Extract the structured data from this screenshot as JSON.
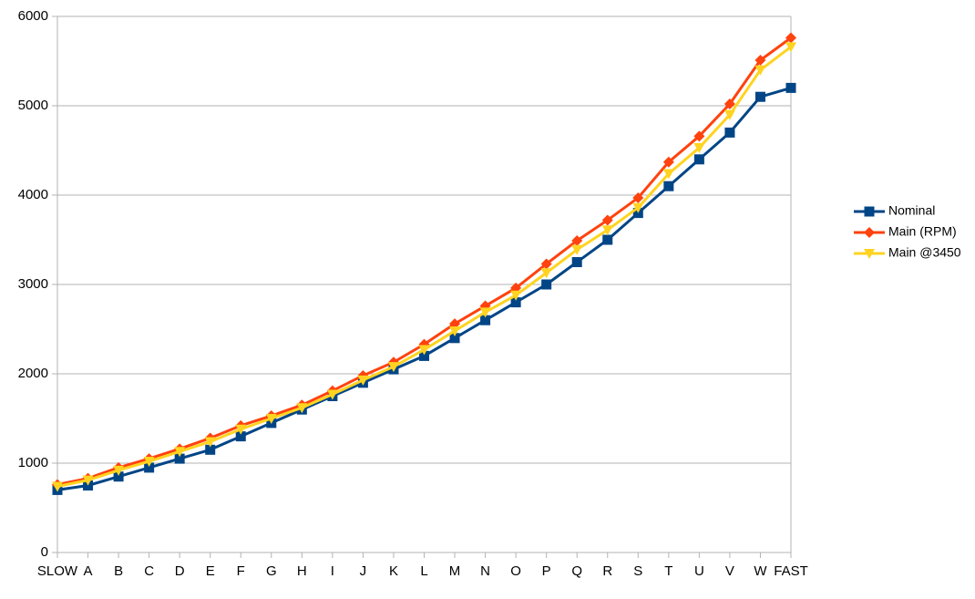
{
  "chart_data": {
    "type": "line",
    "categories": [
      "SLOW",
      "A",
      "B",
      "C",
      "D",
      "E",
      "F",
      "G",
      "H",
      "I",
      "J",
      "K",
      "L",
      "M",
      "N",
      "O",
      "P",
      "Q",
      "R",
      "S",
      "T",
      "U",
      "V",
      "W",
      "FAST"
    ],
    "series": [
      {
        "name": "Nominal",
        "color": "#004586",
        "values": [
          700,
          750,
          850,
          950,
          1050,
          1150,
          1300,
          1450,
          1600,
          1750,
          1900,
          2050,
          2200,
          2400,
          2600,
          2800,
          3000,
          3250,
          3500,
          3800,
          4100,
          4400,
          4700,
          5100,
          5200
        ]
      },
      {
        "name": "Main (RPM)",
        "color": "#ff420e",
        "values": [
          760,
          830,
          950,
          1050,
          1160,
          1280,
          1420,
          1530,
          1650,
          1810,
          1980,
          2130,
          2330,
          2560,
          2760,
          2960,
          3230,
          3490,
          3720,
          3970,
          4370,
          4660,
          5020,
          5510,
          5760
        ]
      },
      {
        "name": "Main @3450",
        "color": "#ffd320",
        "values": [
          740,
          810,
          920,
          1020,
          1130,
          1240,
          1380,
          1500,
          1620,
          1770,
          1930,
          2080,
          2270,
          2480,
          2690,
          2880,
          3130,
          3390,
          3610,
          3860,
          4240,
          4530,
          4900,
          5400,
          5660
        ]
      }
    ],
    "ylim": [
      0,
      6000
    ],
    "yticks": [
      0,
      1000,
      2000,
      3000,
      4000,
      5000,
      6000
    ],
    "grid": true,
    "legend": "right"
  }
}
